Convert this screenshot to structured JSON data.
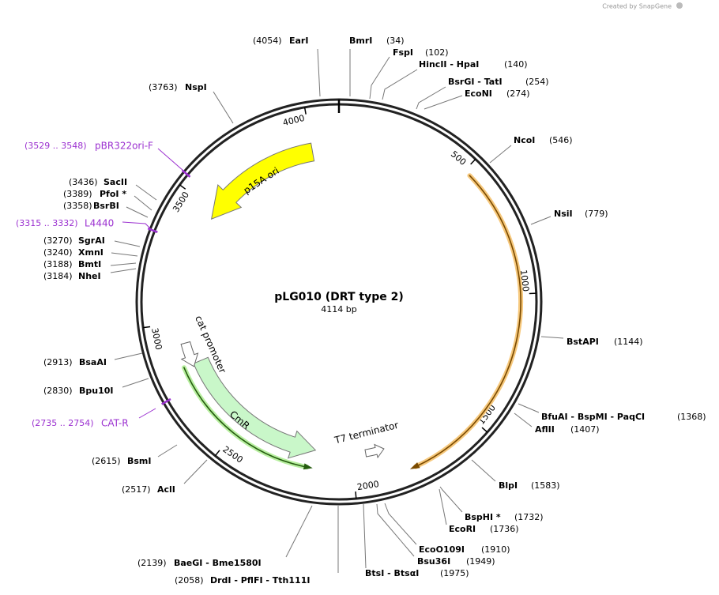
{
  "header": {
    "credit": "Created by SnapGene"
  },
  "map": {
    "name": "pLG010 (DRT type 2)",
    "length": "4114 bp",
    "ruler": [
      500,
      1000,
      1500,
      2000,
      2500,
      3000,
      3500,
      4000
    ]
  },
  "sites": [
    {
      "label": "EarI",
      "position": "(4054)"
    },
    {
      "label": "BmrI",
      "position": "(34)"
    },
    {
      "label": "FspI",
      "position": "(102)"
    },
    {
      "label": "HincII  -  HpaI",
      "position": "(140)"
    },
    {
      "label": "BsrGI  -  TatI",
      "position": "(254)"
    },
    {
      "label": "EcoNI",
      "position": "(274)"
    },
    {
      "label": "NcoI",
      "position": "(546)"
    },
    {
      "label": "NsiI",
      "position": "(779)"
    },
    {
      "label": "BstAPI",
      "position": "(1144)"
    },
    {
      "label": "BfuAI  -  BspMI  -  PaqCI",
      "position": "(1368)"
    },
    {
      "label": "AflII",
      "position": "(1407)"
    },
    {
      "label": "BlpI",
      "position": "(1583)"
    },
    {
      "label": "BspHI *",
      "position": "(1732)"
    },
    {
      "label": "EcoRI",
      "position": "(1736)"
    },
    {
      "label": "EcoO109I",
      "position": "(1910)"
    },
    {
      "label": "Bsu36I",
      "position": "(1949)"
    },
    {
      "label": "BtsI  -  BtsαI",
      "position": "(1975)"
    },
    {
      "label": "DrdI  -  PflFI  -  Tth111I",
      "position": "(2058)"
    },
    {
      "label": "BaeGI  -  Bme1580I",
      "position": "(2139)"
    },
    {
      "label": "AclI",
      "position": "(2517)"
    },
    {
      "label": "BsmI",
      "position": "(2615)"
    },
    {
      "label": "Bpu10I",
      "position": "(2830)"
    },
    {
      "label": "BsaAI",
      "position": "(2913)"
    },
    {
      "label": "NheI",
      "position": "(3184)"
    },
    {
      "label": "BmtI",
      "position": "(3188)"
    },
    {
      "label": "XmnI",
      "position": "(3240)"
    },
    {
      "label": "SgrAI",
      "position": "(3270)"
    },
    {
      "label": "BsrBI",
      "position": "(3358)"
    },
    {
      "label": "PfoI *",
      "position": "(3389)"
    },
    {
      "label": "SacII",
      "position": "(3436)"
    },
    {
      "label": "NspI",
      "position": "(3763)"
    }
  ],
  "primers": [
    {
      "label": "pBR322ori-F",
      "range": "(3529 .. 3548)"
    },
    {
      "label": "L4440",
      "range": "(3315 .. 3332)"
    },
    {
      "label": "CAT-R",
      "range": "(2735 .. 2754)"
    }
  ],
  "features": [
    "p15A ori",
    "CmR",
    "cat promoter",
    "T7 terminator"
  ]
}
